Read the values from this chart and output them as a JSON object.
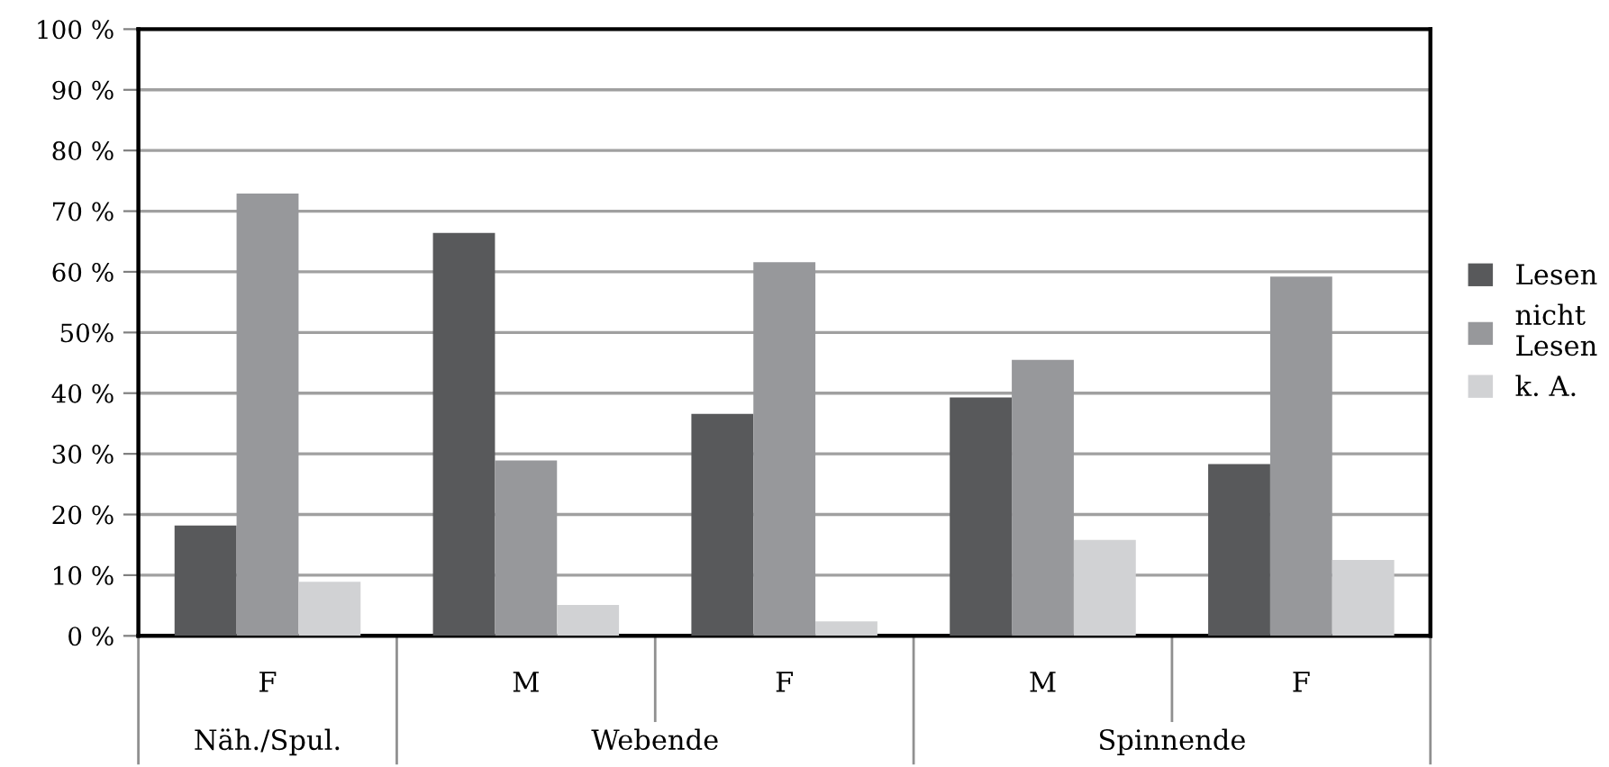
{
  "chart_data": {
    "type": "bar",
    "categories": [
      "F",
      "M",
      "F",
      "M",
      "F"
    ],
    "series": [
      {
        "name": "Lesen",
        "color": "#58595b",
        "values": [
          18.2,
          66.4,
          36.6,
          39.3,
          28.3
        ]
      },
      {
        "name": "nicht\nLesen",
        "color": "#97989b",
        "values": [
          72.9,
          28.9,
          61.6,
          45.5,
          59.2
        ]
      },
      {
        "name": "k. A.",
        "color": "#d1d2d4",
        "values": [
          8.9,
          5.1,
          2.4,
          15.8,
          12.5
        ]
      }
    ],
    "annotations": [
      "Näh./Spul.",
      "Webende",
      "Spinnende"
    ],
    "ylim": [
      0,
      100
    ],
    "yticks": [
      {
        "value": 0,
        "label": "0 %"
      },
      {
        "value": 10,
        "label": "10 %"
      },
      {
        "value": 20,
        "label": "20 %"
      },
      {
        "value": 30,
        "label": "30 %"
      },
      {
        "value": 40,
        "label": "40 %"
      },
      {
        "value": 50,
        "label": "50%"
      },
      {
        "value": 60,
        "label": "60 %"
      },
      {
        "value": 70,
        "label": "70 %"
      },
      {
        "value": 80,
        "label": "80 %"
      },
      {
        "value": 90,
        "label": "90 %"
      },
      {
        "value": 100,
        "label": "100 %"
      }
    ],
    "grid": "y",
    "legend": "right"
  }
}
